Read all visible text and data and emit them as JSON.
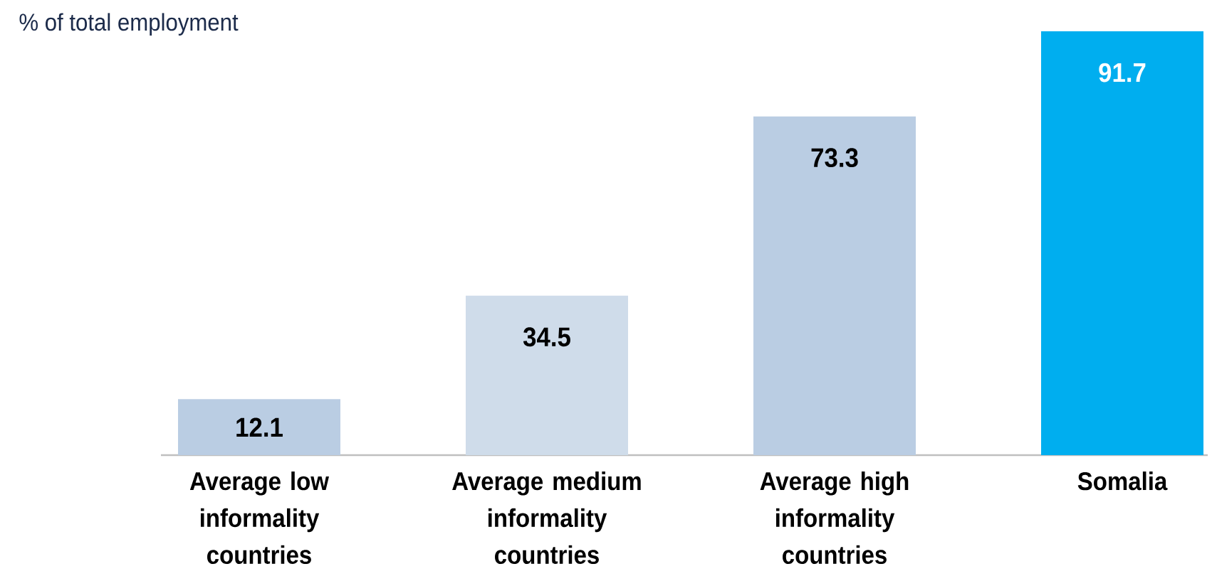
{
  "chart_data": {
    "type": "bar",
    "ylabel": "% of total employment",
    "categories": [
      "Average low informality countries",
      "Average medium informality countries",
      "Average high informality countries",
      "Somalia"
    ],
    "values": [
      12.1,
      34.5,
      73.3,
      91.7
    ],
    "colors": [
      "#bacde3",
      "#cfdcea",
      "#bacde3",
      "#00aeef"
    ],
    "data_labels": true,
    "tick_labels": "x"
  }
}
